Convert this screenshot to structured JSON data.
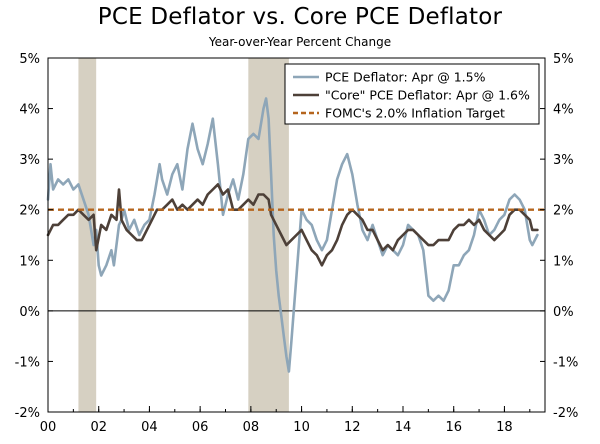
{
  "chart_data": {
    "type": "line",
    "title": "PCE Deflator vs. Core PCE Deflator",
    "subtitle": "Year-over-Year Percent Change",
    "xlabel": "",
    "ylabel": "",
    "xlim": [
      2000.0,
      2019.6
    ],
    "ylim": [
      -2,
      5
    ],
    "y_ticks": [
      -2,
      -1,
      0,
      1,
      2,
      3,
      4,
      5
    ],
    "y_tick_labels": [
      "-2%",
      "-1%",
      "0%",
      "1%",
      "2%",
      "3%",
      "4%",
      "5%"
    ],
    "x_ticks": [
      2000,
      2002,
      2004,
      2006,
      2008,
      2010,
      2012,
      2014,
      2016,
      2018
    ],
    "x_tick_labels": [
      "00",
      "02",
      "04",
      "06",
      "08",
      "10",
      "12",
      "14",
      "16",
      "18"
    ],
    "recessions": [
      {
        "start": 2001.2,
        "end": 2001.9
      },
      {
        "start": 2007.9,
        "end": 2009.5
      }
    ],
    "colors": {
      "pce": "#8ea6b8",
      "core": "#4d4038",
      "target": "#b5651d",
      "recession": "#d6d0c2"
    },
    "legend": [
      {
        "label": "PCE Deflator: Apr @ 1.5%",
        "series": "pce"
      },
      {
        "label": "\"Core\" PCE Deflator: Apr @ 1.6%",
        "series": "core"
      },
      {
        "label": "FOMC's 2.0% Inflation Target",
        "series": "target"
      }
    ],
    "series": [
      {
        "name": "PCE Deflator",
        "key": "pce",
        "points": [
          [
            2000.0,
            2.2
          ],
          [
            2000.1,
            2.9
          ],
          [
            2000.2,
            2.4
          ],
          [
            2000.4,
            2.6
          ],
          [
            2000.6,
            2.5
          ],
          [
            2000.8,
            2.6
          ],
          [
            2001.0,
            2.4
          ],
          [
            2001.2,
            2.5
          ],
          [
            2001.4,
            2.2
          ],
          [
            2001.6,
            1.9
          ],
          [
            2001.8,
            1.3
          ],
          [
            2001.9,
            1.6
          ],
          [
            2002.0,
            0.9
          ],
          [
            2002.1,
            0.7
          ],
          [
            2002.3,
            0.9
          ],
          [
            2002.5,
            1.2
          ],
          [
            2002.6,
            0.9
          ],
          [
            2002.8,
            1.7
          ],
          [
            2002.9,
            1.8
          ],
          [
            2003.0,
            2.0
          ],
          [
            2003.2,
            1.6
          ],
          [
            2003.4,
            1.8
          ],
          [
            2003.6,
            1.5
          ],
          [
            2003.8,
            1.7
          ],
          [
            2004.0,
            1.8
          ],
          [
            2004.2,
            2.3
          ],
          [
            2004.4,
            2.9
          ],
          [
            2004.5,
            2.6
          ],
          [
            2004.7,
            2.3
          ],
          [
            2004.9,
            2.7
          ],
          [
            2005.1,
            2.9
          ],
          [
            2005.3,
            2.4
          ],
          [
            2005.5,
            3.2
          ],
          [
            2005.7,
            3.7
          ],
          [
            2005.9,
            3.2
          ],
          [
            2006.1,
            2.9
          ],
          [
            2006.3,
            3.3
          ],
          [
            2006.5,
            3.8
          ],
          [
            2006.7,
            2.9
          ],
          [
            2006.9,
            1.9
          ],
          [
            2007.1,
            2.3
          ],
          [
            2007.3,
            2.6
          ],
          [
            2007.5,
            2.2
          ],
          [
            2007.7,
            2.7
          ],
          [
            2007.9,
            3.4
          ],
          [
            2008.1,
            3.5
          ],
          [
            2008.3,
            3.4
          ],
          [
            2008.5,
            4.0
          ],
          [
            2008.6,
            4.2
          ],
          [
            2008.7,
            3.8
          ],
          [
            2008.8,
            2.7
          ],
          [
            2008.9,
            1.5
          ],
          [
            2009.0,
            0.8
          ],
          [
            2009.1,
            0.3
          ],
          [
            2009.2,
            -0.1
          ],
          [
            2009.3,
            -0.5
          ],
          [
            2009.4,
            -0.9
          ],
          [
            2009.5,
            -1.2
          ],
          [
            2009.6,
            -0.6
          ],
          [
            2009.8,
            0.7
          ],
          [
            2010.0,
            2.0
          ],
          [
            2010.2,
            1.8
          ],
          [
            2010.4,
            1.7
          ],
          [
            2010.6,
            1.4
          ],
          [
            2010.8,
            1.2
          ],
          [
            2011.0,
            1.4
          ],
          [
            2011.2,
            2.0
          ],
          [
            2011.4,
            2.6
          ],
          [
            2011.6,
            2.9
          ],
          [
            2011.8,
            3.1
          ],
          [
            2012.0,
            2.7
          ],
          [
            2012.2,
            2.1
          ],
          [
            2012.4,
            1.6
          ],
          [
            2012.6,
            1.4
          ],
          [
            2012.8,
            1.7
          ],
          [
            2013.0,
            1.4
          ],
          [
            2013.2,
            1.1
          ],
          [
            2013.4,
            1.3
          ],
          [
            2013.6,
            1.2
          ],
          [
            2013.8,
            1.1
          ],
          [
            2014.0,
            1.3
          ],
          [
            2014.2,
            1.7
          ],
          [
            2014.4,
            1.6
          ],
          [
            2014.6,
            1.5
          ],
          [
            2014.8,
            1.2
          ],
          [
            2015.0,
            0.3
          ],
          [
            2015.2,
            0.2
          ],
          [
            2015.4,
            0.3
          ],
          [
            2015.6,
            0.2
          ],
          [
            2015.8,
            0.4
          ],
          [
            2016.0,
            0.9
          ],
          [
            2016.2,
            0.9
          ],
          [
            2016.4,
            1.1
          ],
          [
            2016.6,
            1.2
          ],
          [
            2016.8,
            1.5
          ],
          [
            2017.0,
            2.0
          ],
          [
            2017.2,
            1.8
          ],
          [
            2017.4,
            1.5
          ],
          [
            2017.6,
            1.6
          ],
          [
            2017.8,
            1.8
          ],
          [
            2018.0,
            1.9
          ],
          [
            2018.2,
            2.2
          ],
          [
            2018.4,
            2.3
          ],
          [
            2018.6,
            2.2
          ],
          [
            2018.8,
            2.0
          ],
          [
            2019.0,
            1.4
          ],
          [
            2019.1,
            1.3
          ],
          [
            2019.3,
            1.5
          ]
        ]
      },
      {
        "name": "\"Core\" PCE Deflator",
        "key": "core",
        "points": [
          [
            2000.0,
            1.5
          ],
          [
            2000.2,
            1.7
          ],
          [
            2000.4,
            1.7
          ],
          [
            2000.6,
            1.8
          ],
          [
            2000.8,
            1.9
          ],
          [
            2001.0,
            1.9
          ],
          [
            2001.2,
            2.0
          ],
          [
            2001.4,
            1.9
          ],
          [
            2001.6,
            1.8
          ],
          [
            2001.8,
            1.9
          ],
          [
            2001.9,
            1.2
          ],
          [
            2002.1,
            1.7
          ],
          [
            2002.3,
            1.6
          ],
          [
            2002.5,
            1.9
          ],
          [
            2002.7,
            1.8
          ],
          [
            2002.8,
            2.4
          ],
          [
            2002.9,
            1.8
          ],
          [
            2003.1,
            1.6
          ],
          [
            2003.3,
            1.5
          ],
          [
            2003.5,
            1.4
          ],
          [
            2003.7,
            1.4
          ],
          [
            2003.9,
            1.6
          ],
          [
            2004.1,
            1.8
          ],
          [
            2004.3,
            2.0
          ],
          [
            2004.5,
            2.0
          ],
          [
            2004.7,
            2.1
          ],
          [
            2004.9,
            2.2
          ],
          [
            2005.1,
            2.0
          ],
          [
            2005.3,
            2.1
          ],
          [
            2005.5,
            2.0
          ],
          [
            2005.7,
            2.1
          ],
          [
            2005.9,
            2.2
          ],
          [
            2006.1,
            2.1
          ],
          [
            2006.3,
            2.3
          ],
          [
            2006.5,
            2.4
          ],
          [
            2006.7,
            2.5
          ],
          [
            2006.9,
            2.3
          ],
          [
            2007.1,
            2.4
          ],
          [
            2007.3,
            2.0
          ],
          [
            2007.5,
            2.0
          ],
          [
            2007.7,
            2.1
          ],
          [
            2007.9,
            2.2
          ],
          [
            2008.1,
            2.1
          ],
          [
            2008.3,
            2.3
          ],
          [
            2008.5,
            2.3
          ],
          [
            2008.7,
            2.2
          ],
          [
            2008.8,
            1.9
          ],
          [
            2009.0,
            1.7
          ],
          [
            2009.2,
            1.5
          ],
          [
            2009.4,
            1.3
          ],
          [
            2009.6,
            1.4
          ],
          [
            2009.8,
            1.5
          ],
          [
            2010.0,
            1.6
          ],
          [
            2010.2,
            1.4
          ],
          [
            2010.4,
            1.2
          ],
          [
            2010.6,
            1.1
          ],
          [
            2010.8,
            0.9
          ],
          [
            2011.0,
            1.1
          ],
          [
            2011.2,
            1.2
          ],
          [
            2011.4,
            1.4
          ],
          [
            2011.6,
            1.7
          ],
          [
            2011.8,
            1.9
          ],
          [
            2012.0,
            2.0
          ],
          [
            2012.2,
            1.9
          ],
          [
            2012.4,
            1.8
          ],
          [
            2012.6,
            1.6
          ],
          [
            2012.8,
            1.6
          ],
          [
            2013.0,
            1.4
          ],
          [
            2013.2,
            1.2
          ],
          [
            2013.4,
            1.3
          ],
          [
            2013.6,
            1.2
          ],
          [
            2013.8,
            1.4
          ],
          [
            2014.0,
            1.5
          ],
          [
            2014.2,
            1.6
          ],
          [
            2014.4,
            1.6
          ],
          [
            2014.6,
            1.5
          ],
          [
            2014.8,
            1.4
          ],
          [
            2015.0,
            1.3
          ],
          [
            2015.2,
            1.3
          ],
          [
            2015.4,
            1.4
          ],
          [
            2015.6,
            1.4
          ],
          [
            2015.8,
            1.4
          ],
          [
            2016.0,
            1.6
          ],
          [
            2016.2,
            1.7
          ],
          [
            2016.4,
            1.7
          ],
          [
            2016.6,
            1.8
          ],
          [
            2016.8,
            1.7
          ],
          [
            2017.0,
            1.8
          ],
          [
            2017.2,
            1.6
          ],
          [
            2017.4,
            1.5
          ],
          [
            2017.6,
            1.4
          ],
          [
            2017.8,
            1.5
          ],
          [
            2018.0,
            1.6
          ],
          [
            2018.2,
            1.9
          ],
          [
            2018.4,
            2.0
          ],
          [
            2018.6,
            2.0
          ],
          [
            2018.8,
            1.9
          ],
          [
            2019.0,
            1.8
          ],
          [
            2019.1,
            1.6
          ],
          [
            2019.3,
            1.6
          ]
        ]
      },
      {
        "name": "FOMC's 2.0% Inflation Target",
        "key": "target",
        "value": 2.0
      }
    ]
  }
}
